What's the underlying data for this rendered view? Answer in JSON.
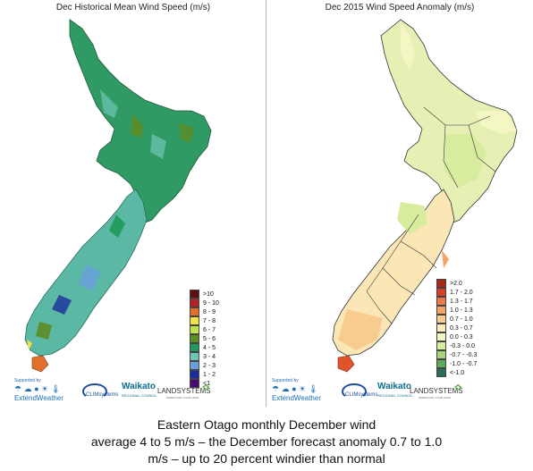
{
  "left_panel": {
    "title": "Dec Historical Mean Wind Speed (m/s)",
    "legend": [
      {
        "label": ">10",
        "color": "#5b0f0f"
      },
      {
        "label": "9 - 10",
        "color": "#b22222"
      },
      {
        "label": "8 - 9",
        "color": "#e2702a"
      },
      {
        "label": "7 - 8",
        "color": "#f2e14a"
      },
      {
        "label": "6 - 7",
        "color": "#bfe34f"
      },
      {
        "label": "5 - 6",
        "color": "#5c8c24"
      },
      {
        "label": "4 - 5",
        "color": "#1f9a5a"
      },
      {
        "label": "3 - 4",
        "color": "#6fc6b6"
      },
      {
        "label": "2 - 3",
        "color": "#6a9fe0"
      },
      {
        "label": "1 - 2",
        "color": "#1a2d9c"
      },
      {
        "label": "<1",
        "color": "#4a0a6e"
      }
    ]
  },
  "right_panel": {
    "title": "Dec 2015 Wind Speed Anomaly (m/s)",
    "legend": [
      {
        "label": ">2.0",
        "color": "#a52a1a"
      },
      {
        "label": "1.7 - 2.0",
        "color": "#d6402a"
      },
      {
        "label": "1.3 - 1.7",
        "color": "#ec7a4a"
      },
      {
        "label": "1.0 - 1.3",
        "color": "#f4a464"
      },
      {
        "label": "0.7 - 1.0",
        "color": "#f8cc8e"
      },
      {
        "label": "0.3 - 0.7",
        "color": "#fcecb8"
      },
      {
        "label": "0.0 - 0.3",
        "color": "#f4f6c4"
      },
      {
        "label": "-0.3 - 0.0",
        "color": "#d8ec9e"
      },
      {
        "label": "-0.7 - -0.3",
        "color": "#a8d47e"
      },
      {
        "label": "-1.0 - -0.7",
        "color": "#5caa5e"
      },
      {
        "label": "<-1.0",
        "color": "#2a6e5a"
      }
    ]
  },
  "logos": {
    "supported_by": "Supported by",
    "extend_weather": "ExtendWeather",
    "climsystems": "CLIMsystems",
    "waikato": "Waikato",
    "waikato_sub": "REGIONAL COUNCIL",
    "landsystems": "LANDSYSTEMS",
    "landsystems_sub": "SMART FOR YOUR LAND"
  },
  "caption": {
    "line1": "Eastern Otago monthly December wind",
    "line2": "average 4 to 5 m/s – the December forecast anomaly 0.7 to 1.0",
    "line3": "m/s – up to 20 percent windier than normal"
  },
  "colors": {
    "north_island_mean": "#2f9a64",
    "south_island_mean": "#5ab8a4",
    "anomaly_north": "#e6f0b4",
    "anomaly_south": "#fbe6b6",
    "anomaly_high": "#e0542c"
  }
}
